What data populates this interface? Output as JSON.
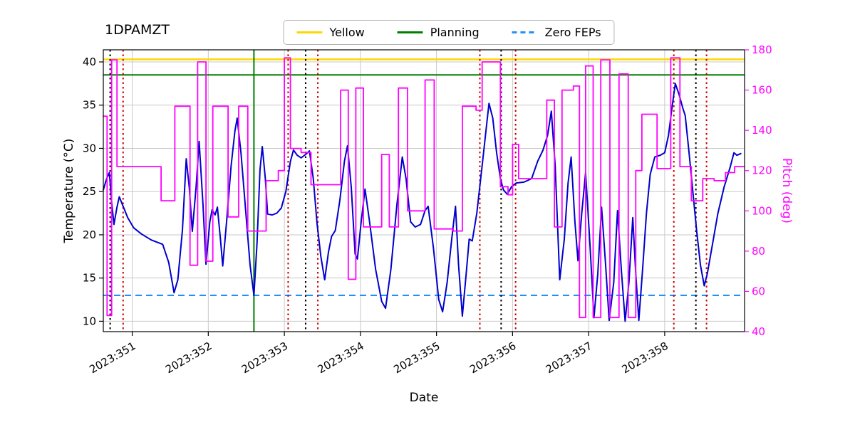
{
  "title": "1DPAMZT",
  "legend": {
    "items": [
      {
        "label": "Yellow",
        "style": "solid",
        "color_key": "yellow_limit"
      },
      {
        "label": "Planning",
        "style": "solid",
        "color_key": "planning_limit"
      },
      {
        "label": "Zero FEPs",
        "style": "dashed",
        "color_key": "zero_feps"
      }
    ]
  },
  "axis_labels": {
    "left": "Temperature (°C)",
    "right": "Pitch (deg)",
    "bottom": "Date"
  },
  "colors": {
    "temperature": "#0000cd",
    "pitch": "#ff00ff",
    "yellow_limit": "#ffd700",
    "planning_limit": "#008000",
    "zero_feps": "#1e90ff",
    "red_marker": "#cc0000",
    "black_marker": "#000000",
    "grid": "#c9c9c9"
  },
  "chart_data": {
    "type": "line",
    "title": "1DPAMZT",
    "xlabel": "Date",
    "ylabel_left": "Temperature (°C)",
    "ylabel_right": "Pitch (deg)",
    "grid": true,
    "legend_position": "top-center",
    "xlim": [
      350.62,
      359.05
    ],
    "ylim_left": [
      8.8,
      41.4
    ],
    "ylim_right": [
      40,
      180
    ],
    "x_ticks": [
      {
        "value": 351,
        "label": "2023:351"
      },
      {
        "value": 352,
        "label": "2023:352"
      },
      {
        "value": 353,
        "label": "2023:353"
      },
      {
        "value": 354,
        "label": "2023:354"
      },
      {
        "value": 355,
        "label": "2023:355"
      },
      {
        "value": 356,
        "label": "2023:356"
      },
      {
        "value": 357,
        "label": "2023:357"
      },
      {
        "value": 358,
        "label": "2023:358"
      }
    ],
    "y_ticks_left": [
      10,
      15,
      20,
      25,
      30,
      35,
      40
    ],
    "y_ticks_right": [
      40,
      60,
      80,
      100,
      120,
      140,
      160,
      180
    ],
    "reference_lines": {
      "horizontal": [
        {
          "label": "Yellow",
          "y": 40.3,
          "axis": "left",
          "style": "solid",
          "color_key": "yellow_limit",
          "width": 2.5
        },
        {
          "label": "Planning",
          "y": 38.5,
          "axis": "left",
          "style": "solid",
          "color_key": "planning_limit",
          "width": 2
        },
        {
          "label": "Zero FEPs",
          "y": 13.0,
          "axis": "left",
          "style": "dashed",
          "color_key": "zero_feps",
          "width": 2
        }
      ],
      "vertical": [
        {
          "x": 350.71,
          "style": "dotted",
          "color_key": "black_marker"
        },
        {
          "x": 350.88,
          "style": "dotted",
          "color_key": "red_marker"
        },
        {
          "x": 352.6,
          "style": "solid",
          "color_key": "planning_limit"
        },
        {
          "x": 353.05,
          "style": "dotted",
          "color_key": "red_marker"
        },
        {
          "x": 353.28,
          "style": "dotted",
          "color_key": "black_marker"
        },
        {
          "x": 353.44,
          "style": "dotted",
          "color_key": "red_marker"
        },
        {
          "x": 355.57,
          "style": "dotted",
          "color_key": "red_marker"
        },
        {
          "x": 355.85,
          "style": "dotted",
          "color_key": "black_marker"
        },
        {
          "x": 356.04,
          "style": "dotted",
          "color_key": "red_marker"
        },
        {
          "x": 358.12,
          "style": "dotted",
          "color_key": "red_marker"
        },
        {
          "x": 358.41,
          "style": "dotted",
          "color_key": "black_marker"
        },
        {
          "x": 358.55,
          "style": "dotted",
          "color_key": "red_marker"
        }
      ]
    },
    "series": [
      {
        "name": "1DPAMZT temperature",
        "axis": "left",
        "style": "line",
        "color_key": "temperature",
        "line_width": 2,
        "points": [
          [
            350.62,
            25.2
          ],
          [
            350.66,
            26.4
          ],
          [
            350.7,
            27.2
          ],
          [
            350.73,
            23.8
          ],
          [
            350.76,
            21.2
          ],
          [
            350.8,
            23.2
          ],
          [
            350.83,
            24.4
          ],
          [
            350.88,
            23.3
          ],
          [
            350.94,
            22.0
          ],
          [
            351.02,
            20.8
          ],
          [
            351.12,
            20.1
          ],
          [
            351.25,
            19.4
          ],
          [
            351.4,
            18.9
          ],
          [
            351.48,
            16.8
          ],
          [
            351.55,
            13.3
          ],
          [
            351.6,
            14.8
          ],
          [
            351.66,
            20.5
          ],
          [
            351.71,
            28.8
          ],
          [
            351.75,
            25.5
          ],
          [
            351.79,
            20.4
          ],
          [
            351.84,
            25.5
          ],
          [
            351.88,
            30.8
          ],
          [
            351.93,
            23.5
          ],
          [
            351.97,
            16.6
          ],
          [
            352.02,
            21.5
          ],
          [
            352.05,
            22.9
          ],
          [
            352.09,
            22.3
          ],
          [
            352.12,
            23.2
          ],
          [
            352.16,
            19.5
          ],
          [
            352.19,
            16.4
          ],
          [
            352.24,
            21.5
          ],
          [
            352.3,
            28.0
          ],
          [
            352.35,
            32.0
          ],
          [
            352.38,
            33.5
          ],
          [
            352.43,
            29.5
          ],
          [
            352.49,
            23.0
          ],
          [
            352.55,
            16.5
          ],
          [
            352.6,
            13.0
          ],
          [
            352.64,
            19.0
          ],
          [
            352.68,
            27.5
          ],
          [
            352.71,
            30.2
          ],
          [
            352.75,
            26.5
          ],
          [
            352.78,
            22.4
          ],
          [
            352.84,
            22.3
          ],
          [
            352.9,
            22.5
          ],
          [
            352.96,
            23.1
          ],
          [
            353.02,
            25.0
          ],
          [
            353.08,
            28.5
          ],
          [
            353.12,
            29.8
          ],
          [
            353.17,
            29.2
          ],
          [
            353.22,
            28.9
          ],
          [
            353.28,
            29.3
          ],
          [
            353.33,
            29.7
          ],
          [
            353.38,
            26.5
          ],
          [
            353.43,
            21.3
          ],
          [
            353.48,
            17.5
          ],
          [
            353.53,
            14.8
          ],
          [
            353.58,
            18.0
          ],
          [
            353.62,
            19.8
          ],
          [
            353.67,
            20.5
          ],
          [
            353.73,
            24.0
          ],
          [
            353.79,
            28.5
          ],
          [
            353.83,
            30.3
          ],
          [
            353.88,
            25.5
          ],
          [
            353.93,
            17.8
          ],
          [
            353.96,
            17.2
          ],
          [
            354.01,
            21.5
          ],
          [
            354.06,
            25.3
          ],
          [
            354.12,
            21.5
          ],
          [
            354.2,
            16.0
          ],
          [
            354.28,
            12.3
          ],
          [
            354.33,
            11.5
          ],
          [
            354.4,
            16.0
          ],
          [
            354.48,
            23.5
          ],
          [
            354.55,
            29.0
          ],
          [
            354.6,
            26.5
          ],
          [
            354.66,
            21.5
          ],
          [
            354.72,
            20.9
          ],
          [
            354.79,
            21.2
          ],
          [
            354.85,
            22.8
          ],
          [
            354.89,
            23.3
          ],
          [
            354.96,
            18.5
          ],
          [
            355.03,
            12.5
          ],
          [
            355.08,
            11.1
          ],
          [
            355.14,
            14.5
          ],
          [
            355.2,
            19.5
          ],
          [
            355.25,
            23.3
          ],
          [
            355.29,
            16.5
          ],
          [
            355.34,
            10.6
          ],
          [
            355.39,
            15.5
          ],
          [
            355.43,
            19.5
          ],
          [
            355.47,
            19.3
          ],
          [
            355.53,
            22.5
          ],
          [
            355.6,
            28.0
          ],
          [
            355.65,
            32.0
          ],
          [
            355.69,
            35.2
          ],
          [
            355.74,
            33.5
          ],
          [
            355.79,
            29.5
          ],
          [
            355.84,
            26.5
          ],
          [
            355.88,
            25.2
          ],
          [
            355.93,
            24.7
          ],
          [
            355.99,
            25.6
          ],
          [
            356.05,
            26.0
          ],
          [
            356.15,
            26.1
          ],
          [
            356.25,
            26.5
          ],
          [
            356.33,
            28.5
          ],
          [
            356.4,
            29.8
          ],
          [
            356.46,
            31.5
          ],
          [
            356.51,
            34.3
          ],
          [
            356.56,
            28.0
          ],
          [
            356.62,
            14.8
          ],
          [
            356.68,
            19.5
          ],
          [
            356.73,
            26.0
          ],
          [
            356.77,
            29.0
          ],
          [
            356.82,
            21.5
          ],
          [
            356.86,
            17.0
          ],
          [
            356.91,
            22.5
          ],
          [
            356.96,
            27.2
          ],
          [
            357.02,
            18.5
          ],
          [
            357.07,
            10.4
          ],
          [
            357.12,
            15.5
          ],
          [
            357.17,
            23.2
          ],
          [
            357.22,
            17.0
          ],
          [
            357.27,
            10.1
          ],
          [
            357.33,
            14.5
          ],
          [
            357.38,
            22.8
          ],
          [
            357.43,
            16.0
          ],
          [
            357.48,
            10.0
          ],
          [
            357.53,
            14.5
          ],
          [
            357.58,
            22.0
          ],
          [
            357.62,
            15.5
          ],
          [
            357.66,
            10.1
          ],
          [
            357.71,
            16.0
          ],
          [
            357.76,
            22.5
          ],
          [
            357.81,
            27.0
          ],
          [
            357.87,
            29.0
          ],
          [
            357.94,
            29.2
          ],
          [
            358.0,
            29.5
          ],
          [
            358.05,
            31.5
          ],
          [
            358.1,
            35.0
          ],
          [
            358.14,
            37.5
          ],
          [
            358.19,
            36.2
          ],
          [
            358.24,
            34.6
          ],
          [
            358.27,
            33.8
          ],
          [
            358.32,
            29.5
          ],
          [
            358.37,
            25.0
          ],
          [
            358.42,
            20.5
          ],
          [
            358.47,
            16.5
          ],
          [
            358.52,
            14.1
          ],
          [
            358.56,
            15.5
          ],
          [
            358.62,
            18.5
          ],
          [
            358.7,
            22.5
          ],
          [
            358.78,
            25.5
          ],
          [
            358.86,
            27.8
          ],
          [
            358.91,
            29.5
          ],
          [
            358.95,
            29.2
          ],
          [
            359.0,
            29.4
          ]
        ]
      },
      {
        "name": "Pitch",
        "axis": "right",
        "style": "step",
        "color_key": "pitch",
        "line_width": 1.8,
        "points": [
          [
            350.62,
            147
          ],
          [
            350.67,
            48
          ],
          [
            350.73,
            175
          ],
          [
            350.8,
            122
          ],
          [
            351.38,
            105
          ],
          [
            351.56,
            152
          ],
          [
            351.76,
            73
          ],
          [
            351.86,
            174
          ],
          [
            351.97,
            75
          ],
          [
            352.06,
            152
          ],
          [
            352.26,
            97
          ],
          [
            352.4,
            152
          ],
          [
            352.52,
            90
          ],
          [
            352.76,
            115
          ],
          [
            352.92,
            120
          ],
          [
            353.0,
            176
          ],
          [
            353.08,
            131
          ],
          [
            353.22,
            129
          ],
          [
            353.35,
            113
          ],
          [
            353.74,
            160
          ],
          [
            353.84,
            66
          ],
          [
            353.94,
            161
          ],
          [
            354.04,
            92
          ],
          [
            354.28,
            128
          ],
          [
            354.38,
            92
          ],
          [
            354.5,
            161
          ],
          [
            354.62,
            100
          ],
          [
            354.85,
            165
          ],
          [
            354.97,
            91
          ],
          [
            355.22,
            90
          ],
          [
            355.34,
            152
          ],
          [
            355.52,
            150
          ],
          [
            355.6,
            174
          ],
          [
            355.84,
            112
          ],
          [
            355.94,
            108
          ],
          [
            356.0,
            133
          ],
          [
            356.08,
            116
          ],
          [
            356.45,
            155
          ],
          [
            356.55,
            92
          ],
          [
            356.65,
            160
          ],
          [
            356.8,
            162
          ],
          [
            356.88,
            47
          ],
          [
            356.96,
            172
          ],
          [
            357.06,
            47
          ],
          [
            357.16,
            175
          ],
          [
            357.28,
            47
          ],
          [
            357.4,
            168
          ],
          [
            357.52,
            47
          ],
          [
            357.62,
            120
          ],
          [
            357.7,
            148
          ],
          [
            357.9,
            121
          ],
          [
            358.08,
            176
          ],
          [
            358.2,
            122
          ],
          [
            358.35,
            105
          ],
          [
            358.5,
            116
          ],
          [
            358.65,
            115
          ],
          [
            358.8,
            119
          ],
          [
            358.92,
            122
          ],
          [
            359.0,
            122
          ]
        ]
      }
    ]
  }
}
